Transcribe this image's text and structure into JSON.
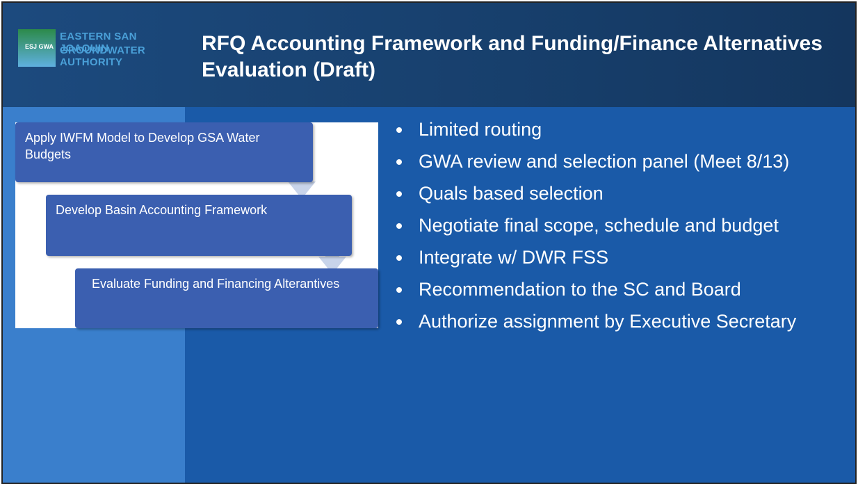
{
  "logo": {
    "line1": "EASTERN SAN JOAQUIN",
    "line2": "GROUNDWATER AUTHORITY",
    "badge": "ESJ GWA"
  },
  "header": {
    "title": "RFQ Accounting Framework and Funding/Finance Alternatives Evaluation (Draft)"
  },
  "steps": [
    "Apply IWFM Model to Develop GSA Water Budgets",
    "Develop Basin Accounting Framework",
    "Evaluate Funding and Financing Alterantives"
  ],
  "bullets": [
    "Limited routing",
    "GWA review and selection panel (Meet 8/13)",
    "Quals based selection",
    "Negotiate final scope, schedule and budget",
    "Integrate w/ DWR FSS",
    "Recommendation to the SC and Board",
    "Authorize assignment by Executive Secretary"
  ]
}
